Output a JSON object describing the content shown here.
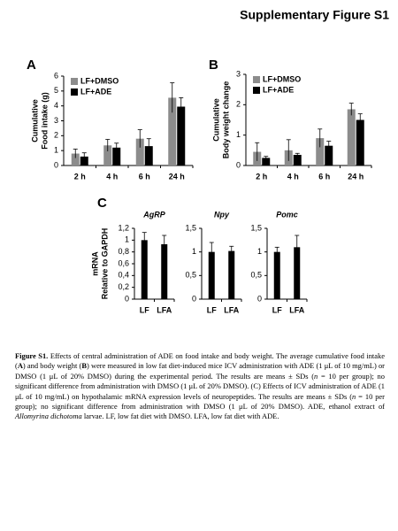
{
  "header": {
    "title": "Supplementary Figure S1"
  },
  "chart_data": [
    {
      "type": "bar",
      "panel": "A",
      "ylabel": [
        "Cumulative",
        "Food intake (g)"
      ],
      "categories": [
        "2 h",
        "4 h",
        "6 h",
        "24 h"
      ],
      "series": [
        {
          "name": "LF+DMSO",
          "color": "#8c8c8c",
          "values": [
            0.8,
            1.35,
            1.8,
            4.55
          ],
          "errors": [
            0.3,
            0.4,
            0.6,
            1.0
          ]
        },
        {
          "name": "LF+ADE",
          "color": "#000000",
          "values": [
            0.6,
            1.2,
            1.3,
            3.95
          ],
          "errors": [
            0.25,
            0.3,
            0.5,
            0.6
          ]
        }
      ],
      "ylim": [
        0,
        6
      ],
      "yticks": [
        0,
        1,
        2,
        3,
        4,
        5,
        6
      ],
      "legend": "upper left"
    },
    {
      "type": "bar",
      "panel": "B",
      "ylabel": [
        "Cumulative",
        "Body weight change"
      ],
      "categories": [
        "2 h",
        "4 h",
        "6 h",
        "24 h"
      ],
      "series": [
        {
          "name": "LF+DMSO",
          "color": "#8c8c8c",
          "values": [
            0.45,
            0.5,
            0.9,
            1.85
          ],
          "errors": [
            0.3,
            0.35,
            0.3,
            0.2
          ]
        },
        {
          "name": "LF+ADE",
          "color": "#000000",
          "values": [
            0.25,
            0.35,
            0.65,
            1.5
          ],
          "errors": [
            0.05,
            0.05,
            0.15,
            0.2
          ]
        }
      ],
      "ylim": [
        0,
        3
      ],
      "yticks": [
        0,
        1,
        2,
        3
      ],
      "legend": "upper left"
    },
    {
      "type": "bar",
      "panel": "C",
      "title": "AgRP",
      "ylabel": [
        "mRNA",
        "Relative to GAPDH"
      ],
      "categories": [
        "LF",
        "LFA"
      ],
      "series": [
        {
          "color": "#000000",
          "values": [
            1.0,
            0.93
          ],
          "errors": [
            0.13,
            0.15
          ]
        }
      ],
      "ylim": [
        0,
        1.2
      ],
      "yticks": [
        0,
        {
          "value": 0.2,
          "label": "0,2"
        },
        {
          "value": 0.4,
          "label": "0,4"
        },
        {
          "value": 0.6,
          "label": "0,6"
        },
        {
          "value": 0.8,
          "label": "0,8"
        },
        1,
        {
          "value": 1.2,
          "label": "1,2"
        }
      ]
    },
    {
      "type": "bar",
      "title": "Npy",
      "categories": [
        "LF",
        "LFA"
      ],
      "series": [
        {
          "color": "#000000",
          "values": [
            1.0,
            1.02
          ],
          "errors": [
            0.2,
            0.1
          ]
        }
      ],
      "ylim": [
        0,
        1.5
      ],
      "yticks": [
        0,
        {
          "value": 0.5,
          "label": "0,5"
        },
        1,
        {
          "value": 1.5,
          "label": "1,5"
        }
      ]
    },
    {
      "type": "bar",
      "title": "Pomc",
      "categories": [
        "LF",
        "LFA"
      ],
      "series": [
        {
          "color": "#000000",
          "values": [
            1.0,
            1.1
          ],
          "errors": [
            0.1,
            0.25
          ]
        }
      ],
      "ylim": [
        0,
        1.5
      ],
      "yticks": [
        0,
        {
          "value": 0.5,
          "label": "0,5"
        },
        1,
        {
          "value": 1.5,
          "label": "1,5"
        }
      ]
    }
  ],
  "caption": [
    "Figure S1.",
    " Effects of central administration of ADE on food intake and body weight. The average cumulative food intake (",
    "A",
    ") and body weight (",
    "B",
    ") were measured in low fat diet-induced mice ICV administration with ADE (1 μL of 10 mg/mL) or DMSO (1 μL of 20% DMSO) during the experimental period. The results are means ± SDs (",
    "n",
    " = 10 per group); no significant difference from administration with DMSO (1 μL of 20% DMSO). (C) Effects of ICV administration of ADE (1 μL of 10 mg/mL) on hypothalamic mRNA expression levels of neuropeptides. The results are means ± SDs (",
    "n",
    " = 10 per group); no significant difference from administration with DMSO (1 μL of 20% DMSO). ADE, ethanol extract of ",
    "Allomyrina dichotoma",
    " larvae. LF, low fat diet with DMSO. LFA, low fat diet with ADE."
  ]
}
